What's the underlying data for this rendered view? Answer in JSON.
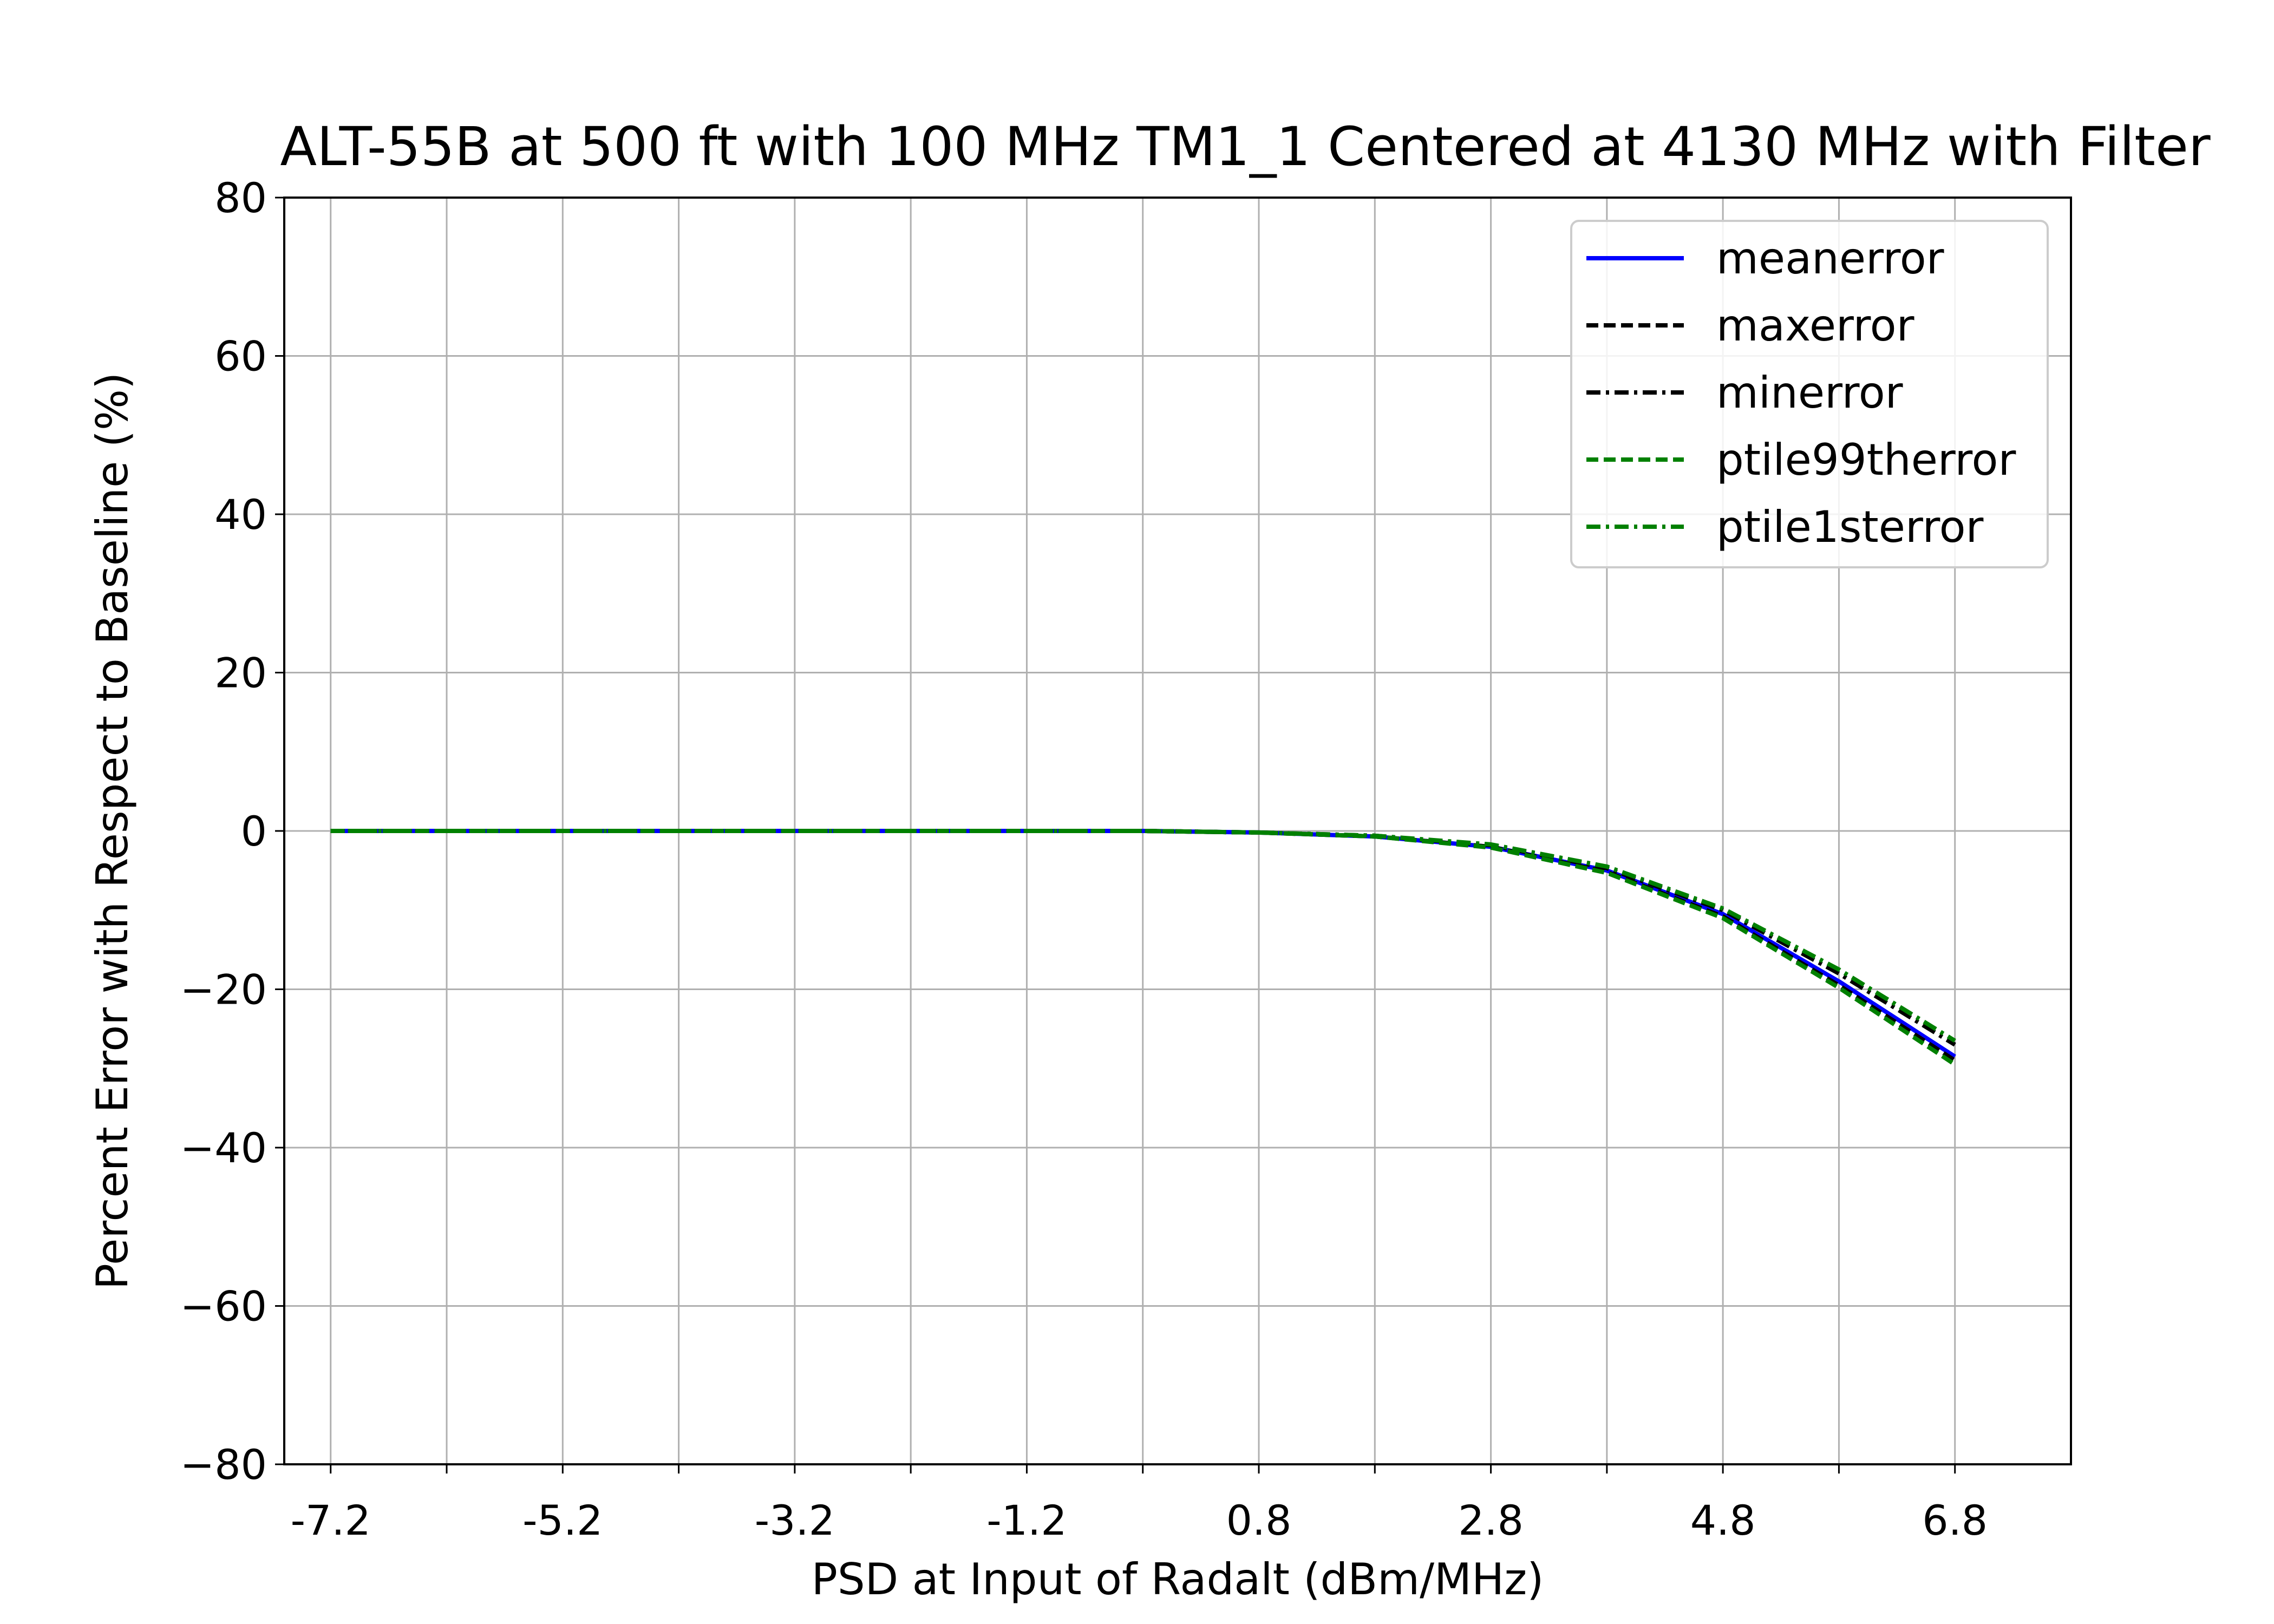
{
  "chart_data": {
    "type": "line",
    "title": "ALT-55B at 500 ft with 100 MHz TM1_1 Centered at 4130 MHz with Filter",
    "xlabel": "PSD at Input of Radalt (dBm/MHz)",
    "ylabel": "Percent Error with Respect to Baseline (%)",
    "xlim": [
      -7.6,
      7.8
    ],
    "ylim": [
      -80,
      80
    ],
    "x_tick_labels": [
      "-7.2",
      "-5.2",
      "-3.2",
      "-1.2",
      "0.8",
      "2.8",
      "4.8",
      "6.8"
    ],
    "x_tick_values": [
      -7.2,
      -5.2,
      -3.2,
      -1.2,
      0.8,
      2.8,
      4.8,
      6.8
    ],
    "x_minor_ticks": [
      -7.2,
      -6.2,
      -5.2,
      -4.2,
      -3.2,
      -2.2,
      -1.2,
      -0.2,
      0.8,
      1.8,
      2.8,
      3.8,
      4.8,
      5.8,
      6.8
    ],
    "y_tick_labels": [
      "80",
      "60",
      "40",
      "20",
      "0",
      "−20",
      "−40",
      "−60",
      "−80"
    ],
    "y_tick_values": [
      80,
      60,
      40,
      20,
      0,
      -20,
      -40,
      -60,
      -80
    ],
    "grid": true,
    "legend_position": "top-right",
    "x": [
      -7.2,
      -6.2,
      -5.2,
      -4.2,
      -3.2,
      -2.2,
      -1.2,
      -0.2,
      0.8,
      1.8,
      2.8,
      3.8,
      4.8,
      5.8,
      6.8
    ],
    "series": [
      {
        "name": "meanerror",
        "color": "#0000ff",
        "dash": "solid",
        "values": [
          0,
          0,
          0,
          0,
          0,
          0,
          0,
          0,
          -0.2,
          -0.7,
          -2.0,
          -5.0,
          -10.5,
          -19.0,
          -28.5
        ]
      },
      {
        "name": "maxerror",
        "color": "#000000",
        "dash": "dashed",
        "values": [
          0,
          0,
          0,
          0,
          0,
          0,
          0,
          0,
          -0.2,
          -0.7,
          -2.0,
          -5.2,
          -10.8,
          -19.5,
          -29.0
        ]
      },
      {
        "name": "minerror",
        "color": "#000000",
        "dash": "dashdot",
        "values": [
          0,
          0,
          0,
          0,
          0,
          0,
          0,
          0,
          -0.2,
          -0.6,
          -1.8,
          -4.7,
          -10.0,
          -18.0,
          -27.0
        ]
      },
      {
        "name": "ptile99therror",
        "color": "#008000",
        "dash": "dashed",
        "values": [
          0,
          0,
          0,
          0,
          0,
          0,
          0,
          0,
          -0.2,
          -0.7,
          -2.1,
          -5.3,
          -11.0,
          -19.8,
          -29.5
        ]
      },
      {
        "name": "ptile1sterror",
        "color": "#008000",
        "dash": "dashdot",
        "values": [
          0,
          0,
          0,
          0,
          0,
          0,
          0,
          0,
          -0.2,
          -0.6,
          -1.7,
          -4.5,
          -9.8,
          -17.5,
          -26.5
        ]
      }
    ]
  }
}
